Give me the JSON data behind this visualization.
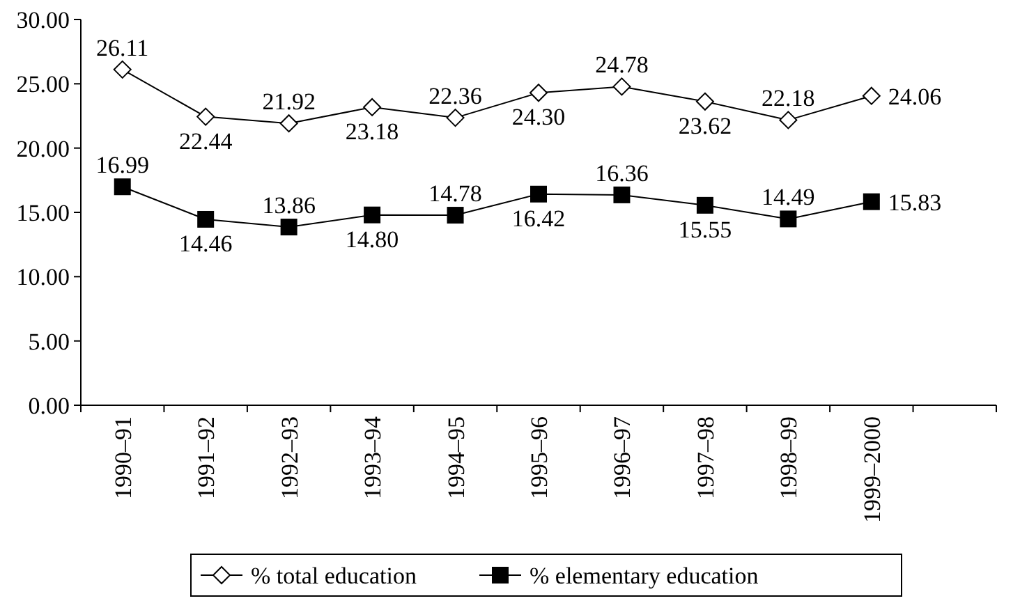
{
  "chart_data": {
    "type": "line",
    "categories": [
      "1990–91",
      "1991–92",
      "1992–93",
      "1993–94",
      "1994–95",
      "1995–96",
      "1996–97",
      "1997–98",
      "1998–99",
      "1999–2000",
      null
    ],
    "ylim": [
      0,
      30
    ],
    "yticks": [
      {
        "value": 0,
        "label": "0.00"
      },
      {
        "value": 5,
        "label": "5.00"
      },
      {
        "value": 10,
        "label": "10.00"
      },
      {
        "value": 15,
        "label": "15.00"
      },
      {
        "value": 20,
        "label": "20.00"
      },
      {
        "value": 25,
        "label": "25.00"
      },
      {
        "value": 30,
        "label": "30.00"
      }
    ],
    "grid": false,
    "legend": "bottom",
    "series": [
      {
        "name": "% total education",
        "color": "#000000",
        "marker": "diamond",
        "values": [
          26.11,
          22.44,
          21.92,
          23.18,
          22.36,
          24.3,
          24.78,
          23.62,
          22.18,
          24.06,
          null
        ],
        "value_labels": [
          "26.11",
          "22.44",
          "21.92",
          "23.18",
          "22.36",
          "24.30",
          "24.78",
          "23.62",
          "22.18",
          "24.06",
          null
        ]
      },
      {
        "name": "% elementary education",
        "color": "#000000",
        "marker": "square",
        "values": [
          16.99,
          14.46,
          13.86,
          14.8,
          14.78,
          16.42,
          16.36,
          15.55,
          14.49,
          15.83,
          null
        ],
        "value_labels": [
          "16.99",
          "14.46",
          "13.86",
          "14.80",
          "14.78",
          "16.42",
          "16.36",
          "15.55",
          "14.49",
          "15.83",
          null
        ]
      }
    ]
  }
}
